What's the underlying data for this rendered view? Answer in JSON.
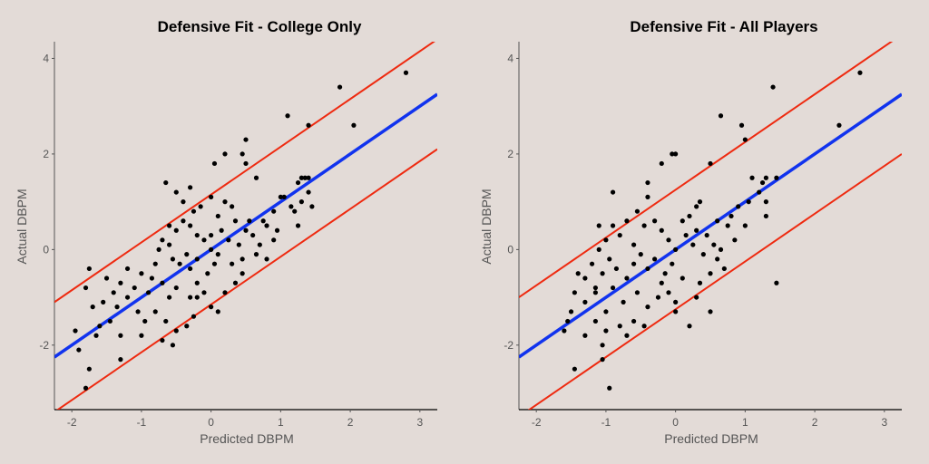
{
  "chart_data": [
    {
      "type": "scatter",
      "title": "Defensive Fit - College Only",
      "xlabel": "Predicted DBPM",
      "ylabel": "Actual DBPM",
      "xlim": [
        -2.25,
        3.25
      ],
      "ylim": [
        -3.35,
        4.35
      ],
      "xticks": [
        -2,
        -1,
        0,
        1,
        2,
        3
      ],
      "yticks": [
        -2,
        0,
        2,
        4
      ],
      "grid": false,
      "fit_line": {
        "slope": 1,
        "intercept": 0,
        "color": "#1133ee"
      },
      "bounds": {
        "offset": 1.15,
        "color": "#ee2a10"
      },
      "point_color": "#000000",
      "points": [
        [
          2.8,
          3.7
        ],
        [
          1.85,
          3.4
        ],
        [
          1.1,
          2.8
        ],
        [
          1.4,
          2.6
        ],
        [
          2.05,
          2.6
        ],
        [
          0.5,
          2.3
        ],
        [
          0.45,
          2.0
        ],
        [
          0.2,
          2.0
        ],
        [
          0.5,
          1.8
        ],
        [
          0.05,
          1.8
        ],
        [
          0.65,
          1.5
        ],
        [
          -0.3,
          1.3
        ],
        [
          -0.65,
          1.4
        ],
        [
          -0.5,
          1.2
        ],
        [
          0.0,
          1.1
        ],
        [
          1.3,
          1.5
        ],
        [
          1.35,
          1.5
        ],
        [
          1.4,
          1.5
        ],
        [
          1.4,
          1.2
        ],
        [
          1.25,
          1.4
        ],
        [
          1.3,
          1.0
        ],
        [
          1.45,
          0.9
        ],
        [
          1.0,
          1.1
        ],
        [
          1.05,
          1.1
        ],
        [
          1.2,
          0.8
        ],
        [
          0.9,
          0.8
        ],
        [
          1.25,
          0.5
        ],
        [
          0.75,
          0.6
        ],
        [
          0.8,
          0.5
        ],
        [
          0.3,
          0.9
        ],
        [
          0.2,
          1.0
        ],
        [
          0.1,
          0.7
        ],
        [
          0.35,
          0.6
        ],
        [
          0.5,
          0.4
        ],
        [
          0.6,
          0.3
        ],
        [
          0.55,
          0.6
        ],
        [
          0.15,
          0.4
        ],
        [
          0.25,
          0.2
        ],
        [
          0.4,
          0.1
        ],
        [
          0.7,
          0.1
        ],
        [
          0.9,
          0.2
        ],
        [
          0.65,
          -0.1
        ],
        [
          0.45,
          -0.2
        ],
        [
          0.3,
          -0.3
        ],
        [
          0.1,
          -0.1
        ],
        [
          0.0,
          0.0
        ],
        [
          -0.1,
          0.2
        ],
        [
          -0.2,
          0.3
        ],
        [
          -0.3,
          0.5
        ],
        [
          -0.4,
          0.6
        ],
        [
          -0.5,
          0.4
        ],
        [
          -0.6,
          0.5
        ],
        [
          -0.25,
          0.8
        ],
        [
          -0.15,
          0.9
        ],
        [
          -0.4,
          1.0
        ],
        [
          0.0,
          0.3
        ],
        [
          0.05,
          -0.3
        ],
        [
          -0.05,
          -0.5
        ],
        [
          -0.2,
          -0.2
        ],
        [
          -0.3,
          -0.4
        ],
        [
          -0.35,
          -0.1
        ],
        [
          -0.45,
          -0.3
        ],
        [
          -0.55,
          -0.2
        ],
        [
          -0.6,
          0.1
        ],
        [
          -0.7,
          0.2
        ],
        [
          -0.75,
          0.0
        ],
        [
          -0.8,
          -0.3
        ],
        [
          -0.2,
          -0.7
        ],
        [
          -0.1,
          -0.9
        ],
        [
          0.0,
          -1.2
        ],
        [
          -0.3,
          -1.0
        ],
        [
          -0.5,
          -0.8
        ],
        [
          -0.6,
          -1.0
        ],
        [
          -0.7,
          -0.7
        ],
        [
          -0.85,
          -0.6
        ],
        [
          -0.9,
          -0.9
        ],
        [
          -1.0,
          -0.5
        ],
        [
          -1.1,
          -0.8
        ],
        [
          -1.2,
          -0.4
        ],
        [
          -1.3,
          -0.7
        ],
        [
          -1.4,
          -0.9
        ],
        [
          -1.5,
          -0.6
        ],
        [
          -1.55,
          -1.1
        ],
        [
          -1.35,
          -1.2
        ],
        [
          -1.2,
          -1.0
        ],
        [
          -1.05,
          -1.3
        ],
        [
          -0.95,
          -1.5
        ],
        [
          -0.8,
          -1.3
        ],
        [
          -0.65,
          -1.5
        ],
        [
          -0.5,
          -1.7
        ],
        [
          -0.35,
          -1.6
        ],
        [
          -1.45,
          -1.5
        ],
        [
          -1.6,
          -1.6
        ],
        [
          -1.7,
          -1.2
        ],
        [
          -1.8,
          -0.8
        ],
        [
          -1.75,
          -0.4
        ],
        [
          -1.65,
          -1.8
        ],
        [
          -1.3,
          -1.8
        ],
        [
          -1.0,
          -1.8
        ],
        [
          -0.7,
          -1.9
        ],
        [
          -0.55,
          -2.0
        ],
        [
          -0.25,
          -1.4
        ],
        [
          0.1,
          -1.3
        ],
        [
          -1.95,
          -1.7
        ],
        [
          -1.9,
          -2.1
        ],
        [
          -1.75,
          -2.5
        ],
        [
          -1.8,
          -2.9
        ],
        [
          -1.3,
          -2.3
        ],
        [
          -0.2,
          -1.0
        ],
        [
          0.2,
          -0.9
        ],
        [
          0.35,
          -0.7
        ],
        [
          0.45,
          -0.5
        ],
        [
          0.8,
          -0.2
        ],
        [
          0.95,
          0.4
        ],
        [
          1.15,
          0.9
        ]
      ]
    },
    {
      "type": "scatter",
      "title": "Defensive Fit - All Players",
      "xlabel": "Predicted DBPM",
      "ylabel": "Actual DBPM",
      "xlim": [
        -2.25,
        3.25
      ],
      "ylim": [
        -3.35,
        4.35
      ],
      "xticks": [
        -2,
        -1,
        0,
        1,
        2,
        3
      ],
      "yticks": [
        -2,
        0,
        2,
        4
      ],
      "grid": false,
      "fit_line": {
        "slope": 1,
        "intercept": 0,
        "color": "#1133ee"
      },
      "bounds": {
        "offset": 1.25,
        "color": "#ee2a10"
      },
      "point_color": "#000000",
      "points": [
        [
          2.65,
          3.7
        ],
        [
          1.4,
          3.4
        ],
        [
          0.65,
          2.8
        ],
        [
          0.95,
          2.6
        ],
        [
          2.35,
          2.6
        ],
        [
          0.0,
          2.0
        ],
        [
          -0.05,
          2.0
        ],
        [
          1.0,
          2.3
        ],
        [
          0.5,
          1.8
        ],
        [
          -0.2,
          1.8
        ],
        [
          -0.4,
          1.4
        ],
        [
          -0.9,
          1.2
        ],
        [
          -0.4,
          1.1
        ],
        [
          0.35,
          1.0
        ],
        [
          1.1,
          1.5
        ],
        [
          1.3,
          1.5
        ],
        [
          1.45,
          1.5
        ],
        [
          1.2,
          1.2
        ],
        [
          1.25,
          1.4
        ],
        [
          1.05,
          1.0
        ],
        [
          1.3,
          1.0
        ],
        [
          0.9,
          0.9
        ],
        [
          1.3,
          0.7
        ],
        [
          0.8,
          0.7
        ],
        [
          1.0,
          0.5
        ],
        [
          0.6,
          0.6
        ],
        [
          0.75,
          0.5
        ],
        [
          1.45,
          -0.7
        ],
        [
          0.3,
          0.9
        ],
        [
          0.2,
          0.7
        ],
        [
          0.1,
          0.6
        ],
        [
          0.3,
          0.4
        ],
        [
          0.45,
          0.3
        ],
        [
          0.55,
          0.1
        ],
        [
          0.15,
          0.3
        ],
        [
          0.25,
          0.1
        ],
        [
          0.4,
          -0.1
        ],
        [
          0.6,
          -0.2
        ],
        [
          0.7,
          -0.4
        ],
        [
          0.5,
          -0.5
        ],
        [
          0.35,
          -0.7
        ],
        [
          0.0,
          0.0
        ],
        [
          -0.1,
          0.2
        ],
        [
          -0.2,
          0.4
        ],
        [
          -0.3,
          0.6
        ],
        [
          -0.45,
          0.5
        ],
        [
          -0.55,
          0.8
        ],
        [
          -0.7,
          0.6
        ],
        [
          -0.8,
          0.3
        ],
        [
          -0.9,
          0.5
        ],
        [
          -1.0,
          0.2
        ],
        [
          -1.1,
          0.0
        ],
        [
          -0.6,
          0.1
        ],
        [
          -0.05,
          -0.3
        ],
        [
          -0.15,
          -0.5
        ],
        [
          -0.3,
          -0.2
        ],
        [
          -0.4,
          -0.4
        ],
        [
          -0.5,
          -0.1
        ],
        [
          -0.6,
          -0.3
        ],
        [
          -0.7,
          -0.6
        ],
        [
          -0.85,
          -0.4
        ],
        [
          -0.95,
          -0.2
        ],
        [
          -1.05,
          -0.5
        ],
        [
          -1.2,
          -0.3
        ],
        [
          -1.3,
          -0.6
        ],
        [
          -0.1,
          -0.9
        ],
        [
          0.0,
          -1.1
        ],
        [
          -0.25,
          -1.0
        ],
        [
          -0.4,
          -1.2
        ],
        [
          -0.55,
          -0.9
        ],
        [
          -0.75,
          -1.1
        ],
        [
          -0.9,
          -0.8
        ],
        [
          -1.0,
          -1.3
        ],
        [
          -1.15,
          -0.9
        ],
        [
          -1.3,
          -1.1
        ],
        [
          -1.45,
          -0.9
        ],
        [
          -1.5,
          -1.3
        ],
        [
          -0.6,
          -1.5
        ],
        [
          -0.8,
          -1.6
        ],
        [
          -1.0,
          -1.7
        ],
        [
          -1.15,
          -1.5
        ],
        [
          -1.3,
          -1.8
        ],
        [
          -1.05,
          -2.0
        ],
        [
          -0.7,
          -1.8
        ],
        [
          -0.45,
          -1.6
        ],
        [
          0.2,
          -1.6
        ],
        [
          -1.55,
          -1.5
        ],
        [
          -1.6,
          -1.7
        ],
        [
          -1.4,
          -0.5
        ],
        [
          -1.05,
          -2.3
        ],
        [
          -0.95,
          -2.9
        ],
        [
          -1.45,
          -2.5
        ],
        [
          -1.1,
          0.5
        ],
        [
          -1.15,
          -0.8
        ],
        [
          0.0,
          -1.3
        ],
        [
          0.3,
          -1.0
        ],
        [
          0.1,
          -0.6
        ],
        [
          -0.2,
          -0.7
        ],
        [
          0.85,
          0.2
        ],
        [
          0.5,
          -1.3
        ],
        [
          0.65,
          0.0
        ]
      ]
    }
  ]
}
